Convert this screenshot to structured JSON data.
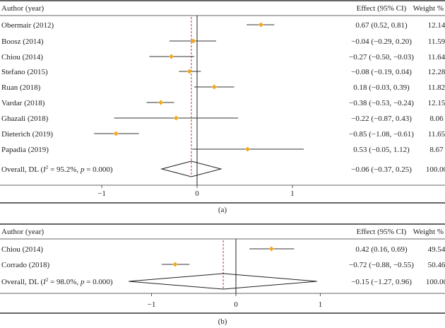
{
  "chart_data": [
    {
      "type": "forest",
      "panel_label": "(a)",
      "header": {
        "study": "Author (year)",
        "effect": "Effect (95% CI)",
        "weight": "Weight %"
      },
      "studies": [
        {
          "label": "Obermair (2012)",
          "effect": 0.67,
          "lo": 0.52,
          "hi": 0.81,
          "effect_text": "0.67 (0.52, 0.81)",
          "weight": "12.14"
        },
        {
          "label": "Boosz (2014)",
          "effect": -0.04,
          "lo": -0.29,
          "hi": 0.2,
          "effect_text": "−0.04 (−0.29, 0.20)",
          "weight": "11.59"
        },
        {
          "label": "Chiou (2014)",
          "effect": -0.27,
          "lo": -0.5,
          "hi": -0.03,
          "effect_text": "−0.27 (−0.50, −0.03)",
          "weight": "11.64"
        },
        {
          "label": "Stefano (2015)",
          "effect": -0.08,
          "lo": -0.19,
          "hi": 0.04,
          "effect_text": "−0.08 (−0.19, 0.04)",
          "weight": "12.28"
        },
        {
          "label": "Ruan (2018)",
          "effect": 0.18,
          "lo": -0.03,
          "hi": 0.39,
          "effect_text": "0.18 (−0.03, 0.39)",
          "weight": "11.82"
        },
        {
          "label": "Vardar (2018)",
          "effect": -0.38,
          "lo": -0.53,
          "hi": -0.24,
          "effect_text": "−0.38 (−0.53, −0.24)",
          "weight": "12.15"
        },
        {
          "label": "Ghazali (2018)",
          "effect": -0.22,
          "lo": -0.87,
          "hi": 0.43,
          "effect_text": "−0.22 (−0.87, 0.43)",
          "weight": "8.06"
        },
        {
          "label": "Dieterich (2019)",
          "effect": -0.85,
          "lo": -1.08,
          "hi": -0.61,
          "effect_text": "−0.85 (−1.08, −0.61)",
          "weight": "11.65"
        },
        {
          "label": "Papadia (2019)",
          "effect": 0.53,
          "lo": -0.05,
          "hi": 1.12,
          "effect_text": "0.53 (−0.05, 1.12)",
          "weight": "8.67"
        }
      ],
      "overall": {
        "label_prefix": "Overall, DL (",
        "i2_symbol": "I",
        "i2_sup": "2",
        "label_mid": " = 95.2%, ",
        "p_symbol": "p",
        "label_suffix": " = 0.000)",
        "effect": -0.06,
        "lo": -0.37,
        "hi": 0.25,
        "effect_text": "−0.06 (−0.37, 0.25)",
        "weight": "100.00"
      },
      "ticks": [
        {
          "v": -1,
          "label": "−1"
        },
        {
          "v": 0,
          "label": "0"
        },
        {
          "v": 1,
          "label": "1"
        }
      ],
      "xlim": [
        -2.0,
        1.0
      ]
    },
    {
      "type": "forest",
      "panel_label": "(b)",
      "header": {
        "study": "Author (year)",
        "effect": "Effect (95% CI)",
        "weight": "Weight %"
      },
      "studies": [
        {
          "label": "Chiou (2014)",
          "effect": 0.42,
          "lo": 0.16,
          "hi": 0.69,
          "effect_text": "0.42 (0.16, 0.69)",
          "weight": "49.54"
        },
        {
          "label": "Corrado (2018)",
          "effect": -0.72,
          "lo": -0.88,
          "hi": -0.55,
          "effect_text": "−0.72 (−0.88, −0.55)",
          "weight": "50.46"
        }
      ],
      "overall": {
        "label_prefix": "Overall, DL (",
        "i2_symbol": "I",
        "i2_sup": "2",
        "label_mid": " = 98.0%, ",
        "p_symbol": "p",
        "label_suffix": " = 0.000)",
        "effect": -0.15,
        "lo": -1.27,
        "hi": 0.96,
        "effect_text": "−0.15 (−1.27, 0.96)",
        "weight": "100.00"
      },
      "ticks": [
        {
          "v": -1,
          "label": "−1"
        },
        {
          "v": 0,
          "label": "0"
        },
        {
          "v": 1,
          "label": "1"
        }
      ],
      "xlim": [
        -1.3,
        1.0
      ]
    }
  ],
  "colors": {
    "marker": "#f0a81c",
    "ref_line": "#a3403c",
    "line": "#222222"
  }
}
